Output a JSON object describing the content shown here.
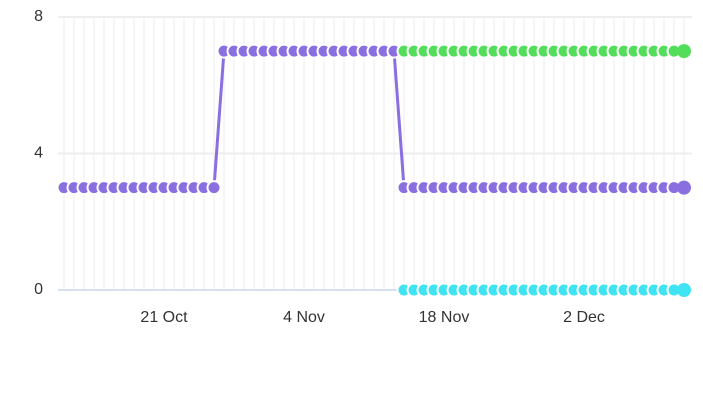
{
  "chart_data": {
    "type": "line",
    "categories": [
      null,
      null,
      null,
      null,
      null,
      null,
      null,
      null,
      null,
      null,
      "21 Oct",
      null,
      null,
      null,
      null,
      null,
      null,
      null,
      null,
      null,
      null,
      null,
      null,
      null,
      "4 Nov",
      null,
      null,
      null,
      null,
      null,
      null,
      null,
      null,
      null,
      null,
      null,
      null,
      null,
      "18 Nov",
      null,
      null,
      null,
      null,
      null,
      null,
      null,
      null,
      null,
      null,
      null,
      null,
      null,
      "2 Dec",
      null,
      null,
      null,
      null,
      null,
      null,
      null,
      null,
      null,
      null
    ],
    "series": [
      {
        "color": "#8a6fe0",
        "values": [
          3,
          3,
          3,
          3,
          3,
          3,
          3,
          3,
          3,
          3,
          3,
          3,
          3,
          3,
          3,
          3,
          7,
          7,
          7,
          7,
          7,
          7,
          7,
          7,
          7,
          7,
          7,
          7,
          7,
          7,
          7,
          7,
          7,
          7,
          3,
          3,
          3,
          3,
          3,
          3,
          3,
          3,
          3,
          3,
          3,
          3,
          3,
          3,
          3,
          3,
          3,
          3,
          3,
          3,
          3,
          3,
          3,
          3,
          3,
          3,
          3,
          3,
          3
        ]
      },
      {
        "color": "#52de5a",
        "values": [
          null,
          null,
          null,
          null,
          null,
          null,
          null,
          null,
          null,
          null,
          null,
          null,
          null,
          null,
          null,
          null,
          null,
          null,
          null,
          null,
          null,
          null,
          null,
          null,
          null,
          null,
          null,
          null,
          null,
          null,
          null,
          null,
          null,
          null,
          7,
          7,
          7,
          7,
          7,
          7,
          7,
          7,
          7,
          7,
          7,
          7,
          7,
          7,
          7,
          7,
          7,
          7,
          7,
          7,
          7,
          7,
          7,
          7,
          7,
          7,
          7,
          7,
          7
        ]
      },
      {
        "color": "#3fe3f2",
        "values": [
          null,
          null,
          null,
          null,
          null,
          null,
          null,
          null,
          null,
          null,
          null,
          null,
          null,
          null,
          null,
          null,
          null,
          null,
          null,
          null,
          null,
          null,
          null,
          null,
          null,
          null,
          null,
          null,
          null,
          null,
          null,
          null,
          null,
          null,
          0,
          0,
          0,
          0,
          0,
          0,
          0,
          0,
          0,
          0,
          0,
          0,
          0,
          0,
          0,
          0,
          0,
          0,
          0,
          0,
          0,
          0,
          0,
          0,
          0,
          0,
          0,
          0,
          0
        ]
      }
    ],
    "ylim": [
      0,
      8
    ],
    "yticks": [
      0,
      4,
      8
    ],
    "grid": true
  }
}
